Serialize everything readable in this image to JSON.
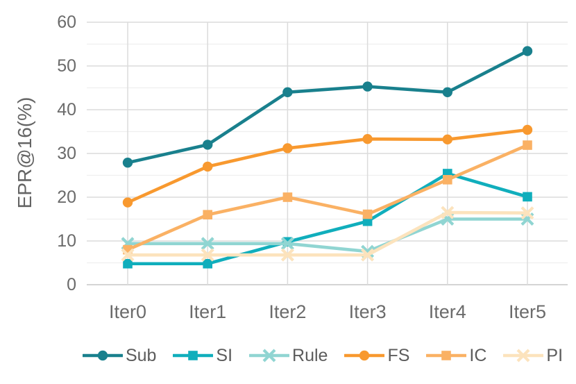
{
  "chart_data": {
    "type": "line",
    "title": "",
    "xlabel": "",
    "ylabel": "EPR@16(%)",
    "categories": [
      "Iter0",
      "Iter1",
      "Iter2",
      "Iter3",
      "Iter4",
      "Iter5"
    ],
    "y_ticks": [
      0,
      10,
      20,
      30,
      40,
      50,
      60
    ],
    "ylim": [
      0,
      62
    ],
    "grid": "horizontal major every 10 with minor every 5, vertical at each category",
    "legend_position": "bottom",
    "series": [
      {
        "name": "Sub",
        "marker": "circle",
        "color": "#19808d",
        "values": [
          27.9,
          32.0,
          44.0,
          45.3,
          44.0,
          53.4
        ]
      },
      {
        "name": "SI",
        "marker": "square",
        "color": "#10aebc",
        "values": [
          4.8,
          4.8,
          9.8,
          14.5,
          25.4,
          20.1
        ]
      },
      {
        "name": "Rule",
        "marker": "x",
        "color": "#90d5d2",
        "values": [
          9.4,
          9.4,
          9.4,
          7.6,
          15.0,
          15.0
        ]
      },
      {
        "name": "FS",
        "marker": "circle",
        "color": "#f8992f",
        "values": [
          18.8,
          27.0,
          31.2,
          33.3,
          33.2,
          35.4
        ]
      },
      {
        "name": "IC",
        "marker": "square",
        "color": "#fab164",
        "values": [
          8.0,
          16.0,
          20.0,
          16.1,
          24.0,
          31.9
        ]
      },
      {
        "name": "PI",
        "marker": "x",
        "color": "#fce3bd",
        "values": [
          6.8,
          6.8,
          6.8,
          6.8,
          16.5,
          16.4
        ]
      }
    ]
  }
}
